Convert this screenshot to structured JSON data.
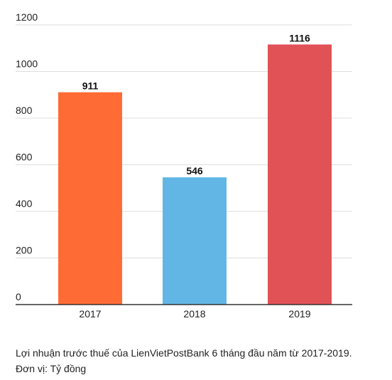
{
  "chart_data": {
    "type": "bar",
    "categories": [
      "2017",
      "2018",
      "2019"
    ],
    "values": [
      911,
      546,
      1116
    ],
    "colors": [
      "#ff6b35",
      "#62b6e6",
      "#e15257"
    ],
    "ylim": [
      0,
      1200
    ],
    "yticks": [
      0,
      200,
      400,
      600,
      800,
      1000,
      1200
    ],
    "grid": true,
    "data_labels": [
      "911",
      "546",
      "1116"
    ]
  },
  "caption": {
    "line1": "Lợi nhuận trước thuế của LienVietPostBank 6 tháng đầu năm từ 2017-2019.",
    "line2": "Đơn vị: Tỷ đồng"
  }
}
